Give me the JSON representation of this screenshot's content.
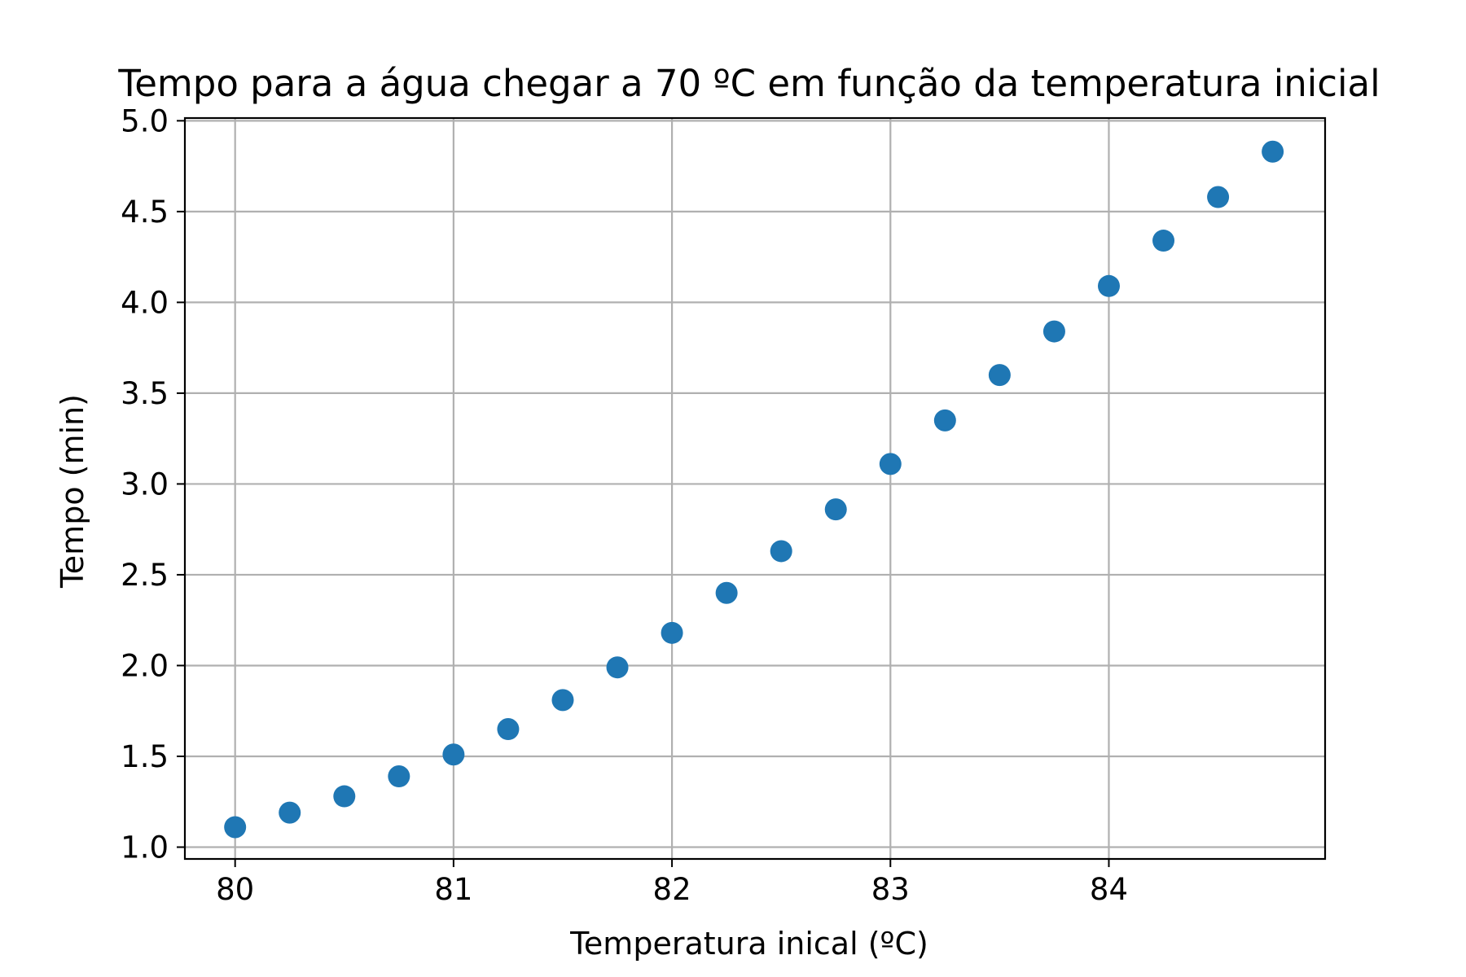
{
  "chart_data": {
    "type": "scatter",
    "title": "Tempo para a água chegar a 70 ºC em função da temperatura inicial",
    "xlabel": "Temperatura inical (ºC)",
    "ylabel": "Tempo (min)",
    "xlim": [
      79.77,
      84.99
    ],
    "ylim": [
      0.935,
      5.015
    ],
    "xticks": [
      80,
      81,
      82,
      83,
      84
    ],
    "xtick_labels": [
      "80",
      "81",
      "82",
      "83",
      "84"
    ],
    "yticks": [
      1.0,
      1.5,
      2.0,
      2.5,
      3.0,
      3.5,
      4.0,
      4.5,
      5.0
    ],
    "ytick_labels": [
      "1.0",
      "1.5",
      "2.0",
      "2.5",
      "3.0",
      "3.5",
      "4.0",
      "4.5",
      "5.0"
    ],
    "grid": true,
    "marker_color": "#1f77b4",
    "series": [
      {
        "x": [
          80.0,
          80.25,
          80.5,
          80.75,
          81.0,
          81.25,
          81.5,
          81.75,
          82.0,
          82.25,
          82.5,
          82.75,
          83.0,
          83.25,
          83.5,
          83.75,
          84.0,
          84.25,
          84.5,
          84.75
        ],
        "y": [
          1.11,
          1.19,
          1.28,
          1.39,
          1.51,
          1.65,
          1.81,
          1.99,
          2.18,
          2.4,
          2.63,
          2.86,
          3.11,
          3.35,
          3.6,
          3.84,
          4.09,
          4.34,
          4.58,
          4.83
        ]
      }
    ]
  }
}
